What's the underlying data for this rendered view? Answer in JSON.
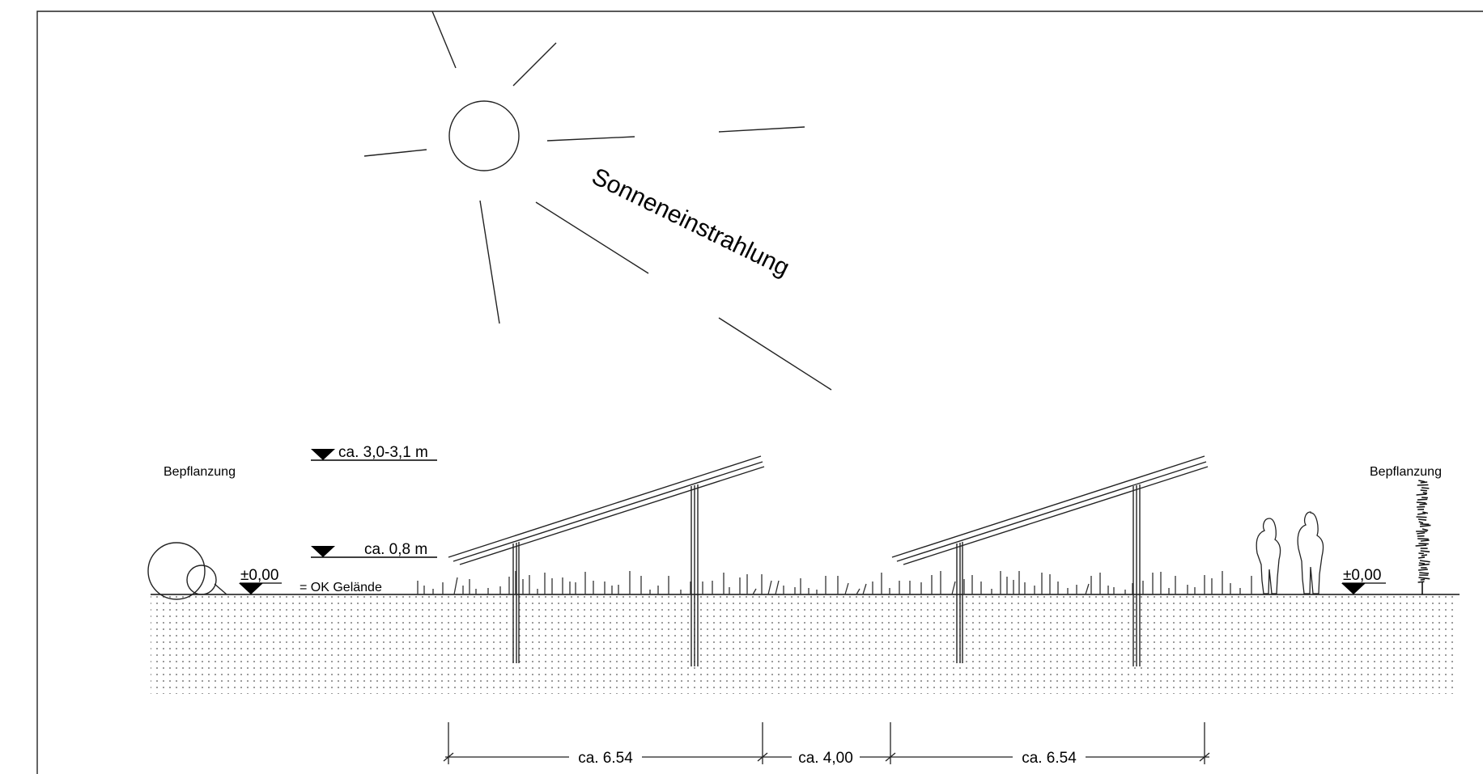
{
  "sun": {
    "label": "Sonneneinstrahlung"
  },
  "planting": {
    "left_label": "Bepflanzung",
    "right_label": "Bepflanzung"
  },
  "levels": {
    "top_height": "ca. 3,0-3,1 m",
    "low_height": "ca. 0,8 m",
    "ground_left": "±0,00",
    "ground_right": "±0,00",
    "ground_note": "= OK Gelände"
  },
  "dimensions": {
    "row_depth_1": "ca. 6.54",
    "row_spacing": "ca. 4,00",
    "row_depth_2": "ca. 6.54"
  }
}
